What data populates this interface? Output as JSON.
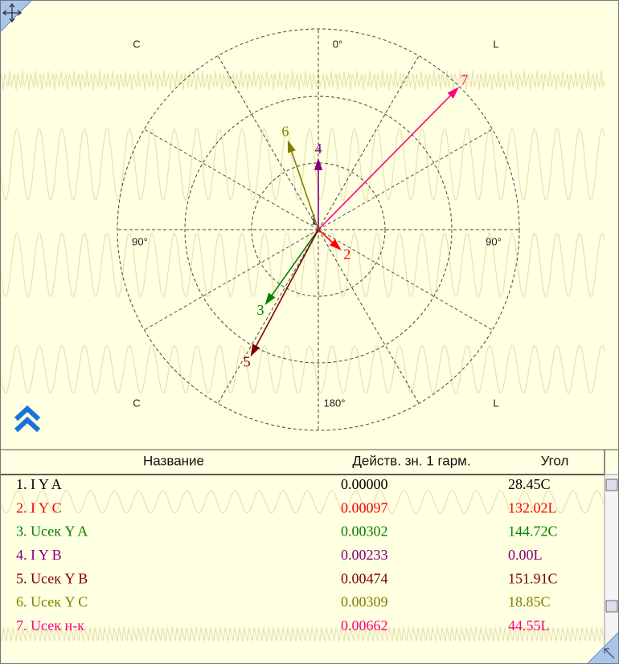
{
  "diagram": {
    "labels": {
      "top_left": "C",
      "top": "0°",
      "top_right": "L",
      "left": "90°",
      "right": "90°",
      "bottom_left": "C",
      "bottom": "180°",
      "bottom_right": "L"
    }
  },
  "table": {
    "header": [
      "Название",
      "Действ. зн. 1 гарм.",
      "Угол"
    ],
    "rows": [
      {
        "vector_label": "1",
        "name": "1. I Y A",
        "value": 0.0,
        "value_label": "0.00000",
        "angle": 28.45,
        "angle_label": "28.45C",
        "color": "#000000"
      },
      {
        "vector_label": "2",
        "name": "2. I Y C",
        "value": 0.00097,
        "value_label": "0.00097",
        "angle": 132.02,
        "angle_label": "132.02L",
        "color": "#ff0000"
      },
      {
        "vector_label": "3",
        "name": "3. Uсек Y A",
        "value": 0.00302,
        "value_label": "0.00302",
        "angle": 144.72,
        "angle_label": "144.72C",
        "color": "#008000"
      },
      {
        "vector_label": "4",
        "name": "4. I Y B",
        "value": 0.00233,
        "value_label": "0.00233",
        "angle": 0.0,
        "angle_label": "0.00L",
        "color": "#800080"
      },
      {
        "vector_label": "5",
        "name": "5. Uсек Y B",
        "value": 0.00474,
        "value_label": "0.00474",
        "angle": 151.91,
        "angle_label": "151.91C",
        "color": "#800000"
      },
      {
        "vector_label": "6",
        "name": "6. Uсек Y C",
        "value": 0.00309,
        "value_label": "0.00309",
        "angle": 18.85,
        "angle_label": "18.85C",
        "color": "#808000"
      },
      {
        "vector_label": "7",
        "name": "7. Uсек н-к",
        "value": 0.00662,
        "value_label": "0.00662",
        "angle": 44.55,
        "angle_label": "44.55L",
        "color": "#ff0080"
      }
    ]
  }
}
